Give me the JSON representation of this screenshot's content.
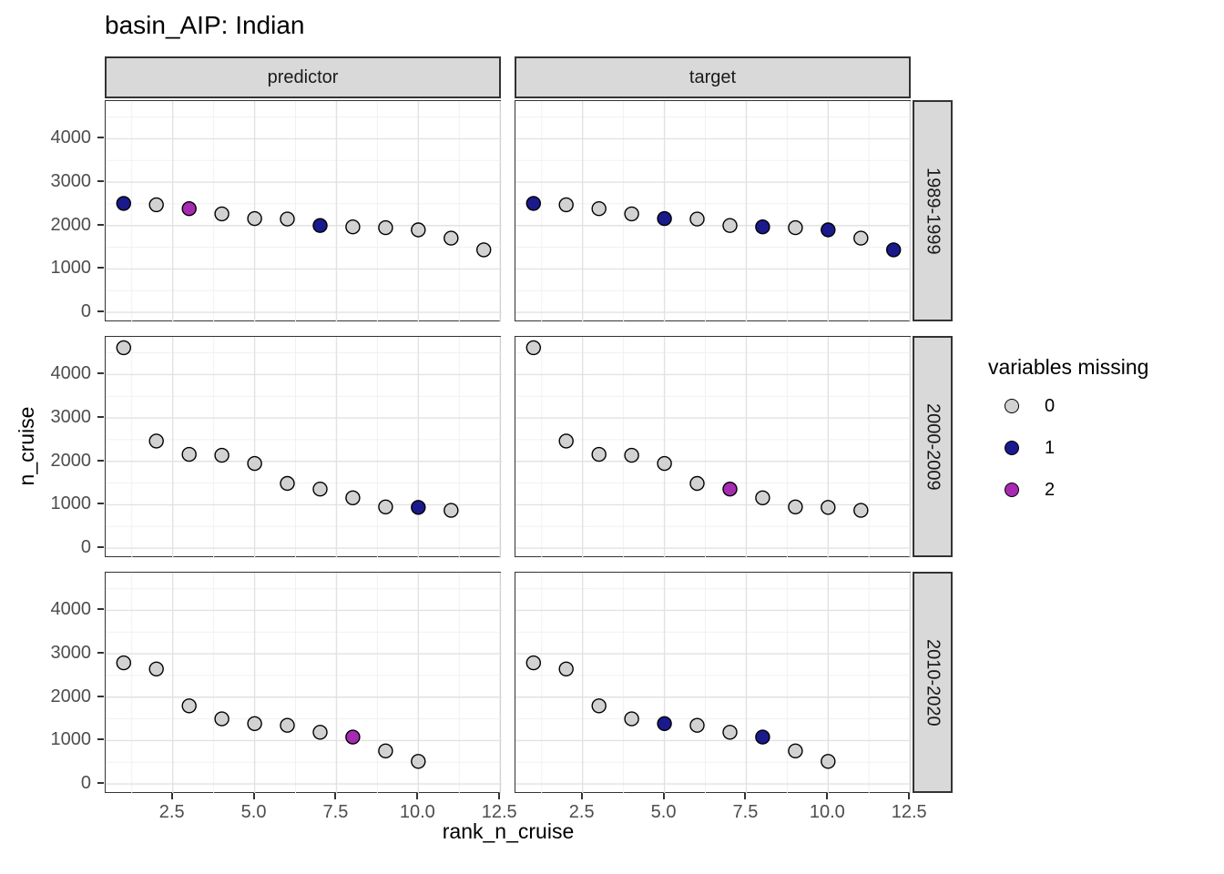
{
  "title": "basin_AIP: Indian",
  "axes": {
    "x_label": "rank_n_cruise",
    "y_label": "n_cruise",
    "x_tick_labels": [
      "2.5",
      "5.0",
      "7.5",
      "10.0",
      "12.5"
    ],
    "x_tick_values": [
      2.5,
      5.0,
      7.5,
      10.0,
      12.5
    ],
    "y_tick_labels": [
      "0",
      "1000",
      "2000",
      "3000",
      "4000"
    ],
    "y_tick_values": [
      0,
      1000,
      2000,
      3000,
      4000
    ]
  },
  "facets": {
    "columns": [
      "predictor",
      "target"
    ],
    "rows": [
      "1989-1999",
      "2000-2009",
      "2010-2020"
    ]
  },
  "legend": {
    "title": "variables missing",
    "items": [
      {
        "label": "0",
        "color": "#D2D2D2"
      },
      {
        "label": "1",
        "color": "#1A1A8C"
      },
      {
        "label": "2",
        "color": "#A62BB2"
      }
    ]
  },
  "chart_data": {
    "type": "scatter",
    "title": "basin_AIP: Indian",
    "xlabel": "rank_n_cruise",
    "ylabel": "n_cruise",
    "xlim": [
      0.45,
      12.55
    ],
    "ylim": [
      -230,
      4870
    ],
    "x_major": [
      2.5,
      5.0,
      7.5,
      10.0,
      12.5
    ],
    "x_minor": [
      1.25,
      3.75,
      6.25,
      8.75,
      11.25
    ],
    "y_major": [
      0,
      1000,
      2000,
      3000,
      4000
    ],
    "y_minor": [
      500,
      1500,
      2500,
      3500,
      4500
    ],
    "grid": true,
    "legend_position": "right",
    "color_by": "variables missing",
    "colors": {
      "0": "#D2D2D2",
      "1": "#1A1A8C",
      "2": "#A62BB2"
    },
    "facet_columns": [
      "predictor",
      "target"
    ],
    "facet_rows": [
      "1989-1999",
      "2000-2009",
      "2010-2020"
    ],
    "rows": [
      {
        "period": "1989-1999",
        "rank_n_cruise": [
          1,
          2,
          3,
          4,
          5,
          6,
          7,
          8,
          9,
          10,
          11,
          12
        ],
        "n_cruise": [
          2510,
          2480,
          2390,
          2270,
          2160,
          2150,
          2000,
          1970,
          1950,
          1900,
          1710,
          1440
        ],
        "missing_predictor": [
          1,
          0,
          2,
          0,
          0,
          0,
          1,
          0,
          0,
          0,
          0,
          0
        ],
        "missing_target": [
          1,
          0,
          0,
          0,
          1,
          0,
          0,
          1,
          0,
          1,
          0,
          1
        ]
      },
      {
        "period": "2000-2009",
        "rank_n_cruise": [
          1,
          2,
          3,
          4,
          5,
          6,
          7,
          8,
          9,
          10,
          11
        ],
        "n_cruise": [
          4620,
          2470,
          2160,
          2140,
          1950,
          1490,
          1360,
          1160,
          950,
          940,
          870
        ],
        "missing_predictor": [
          0,
          0,
          0,
          0,
          0,
          0,
          0,
          0,
          0,
          1,
          0
        ],
        "missing_target": [
          0,
          0,
          0,
          0,
          0,
          0,
          2,
          0,
          0,
          0,
          0
        ]
      },
      {
        "period": "2010-2020",
        "rank_n_cruise": [
          1,
          2,
          3,
          4,
          5,
          6,
          7,
          8,
          9,
          10
        ],
        "n_cruise": [
          2790,
          2650,
          1800,
          1500,
          1390,
          1350,
          1190,
          1080,
          760,
          520
        ],
        "missing_predictor": [
          0,
          0,
          0,
          0,
          0,
          0,
          0,
          2,
          0,
          0
        ],
        "missing_target": [
          0,
          0,
          0,
          0,
          1,
          0,
          0,
          1,
          0,
          0
        ]
      }
    ]
  }
}
